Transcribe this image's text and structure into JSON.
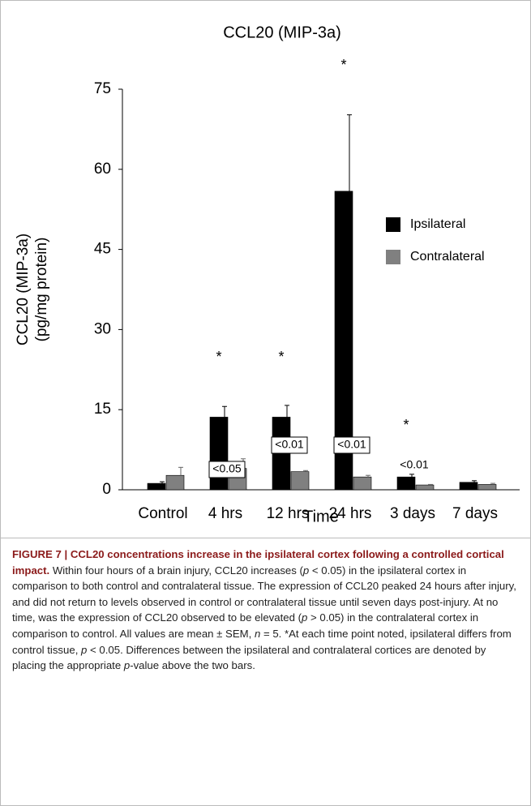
{
  "chart_data": {
    "type": "bar",
    "title": "CCL20 (MIP-3a)",
    "ylabel": [
      "CCL20 (MIP-3a)",
      "(pg/mg protein)"
    ],
    "xlabel": "Time",
    "categories": [
      "Control",
      "4 hrs",
      "12 hrs",
      "24 hrs",
      "3 days",
      "7 days"
    ],
    "series": [
      {
        "name": "Ipsilateral",
        "color": "#000000",
        "values": [
          1.2,
          13.6,
          13.6,
          55.9,
          2.4,
          1.4
        ],
        "errors": [
          0.3,
          2.0,
          2.2,
          14.3,
          0.5,
          0.3
        ]
      },
      {
        "name": "Contralateral",
        "color": "#808080",
        "values": [
          2.7,
          4.0,
          3.4,
          2.4,
          0.9,
          1.0
        ],
        "errors": [
          1.5,
          1.8,
          0.2,
          0.3,
          0.1,
          0.2
        ]
      }
    ],
    "significance": [
      null,
      "*",
      "*",
      "*",
      "*",
      null
    ],
    "p_values": [
      null,
      "<0.05",
      "<0.01",
      "<0.01",
      "<0.01",
      null
    ],
    "ylim": [
      0,
      75
    ],
    "yticks": [
      0,
      15,
      30,
      45,
      60,
      75
    ],
    "grid": false,
    "legend": "right"
  },
  "caption": {
    "heading": "FIGURE 7 | CCL20 concentrations increase in the ipsilateral cortex following a controlled cortical impact.",
    "body": [
      {
        "text": " Within four hours of a brain injury, CCL20 increases (",
        "italic": false
      },
      {
        "text": "p",
        "italic": true
      },
      {
        "text": " < 0.05) in the ipsilateral cortex in comparison to both control and contralateral tissue. The expression of CCL20 peaked 24 hours after injury, and did not return to levels observed in control or contralateral tissue until seven days post-injury. At no time, was the expression of CCL20 observed to be elevated (",
        "italic": false
      },
      {
        "text": "p",
        "italic": true
      },
      {
        "text": " > 0.05) in the contralateral cortex in comparison to control. All values are mean ± SEM, ",
        "italic": false
      },
      {
        "text": "n",
        "italic": true
      },
      {
        "text": " = 5. *At each time point noted, ipsilateral differs from control tissue, ",
        "italic": false
      },
      {
        "text": "p",
        "italic": true
      },
      {
        "text": " < 0.05. Differences between the ipsilateral and contralateral cortices are denoted by placing the appropriate ",
        "italic": false
      },
      {
        "text": "p",
        "italic": true
      },
      {
        "text": "-value above the two bars.",
        "italic": false
      }
    ]
  }
}
